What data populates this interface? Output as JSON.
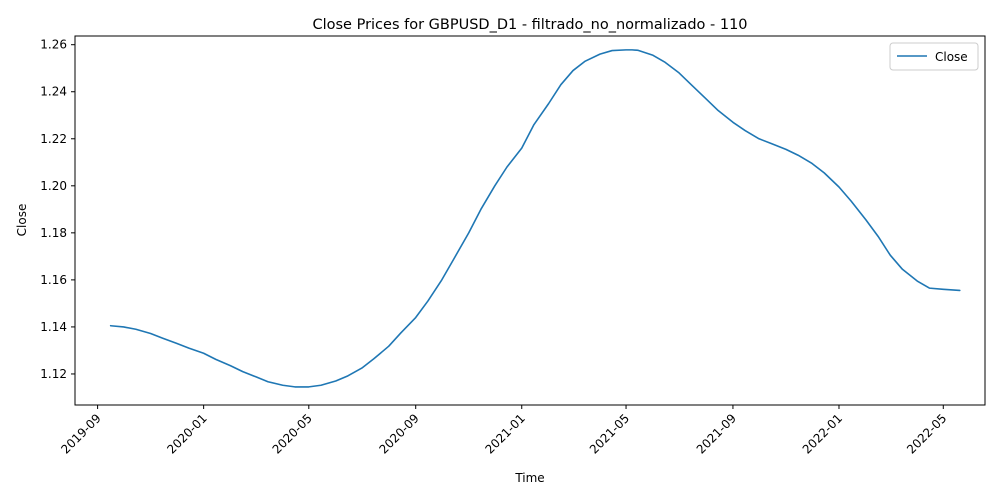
{
  "chart_data": {
    "type": "line",
    "title": "Close Prices for GBPUSD_D1 - filtrado_no_normalizado - 110",
    "xlabel": "Time",
    "ylabel": "Close",
    "x_ticks": [
      "2019-09",
      "2020-01",
      "2020-05",
      "2020-09",
      "2021-01",
      "2021-05",
      "2021-09",
      "2022-01",
      "2022-05"
    ],
    "y_ticks": [
      "1.12",
      "1.14",
      "1.16",
      "1.18",
      "1.20",
      "1.22",
      "1.24",
      "1.26"
    ],
    "xlim": [
      "2019-08-06",
      "2022-06-18"
    ],
    "ylim": [
      1.1068,
      1.2637
    ],
    "grid": false,
    "legend_position": "upper right",
    "series": [
      {
        "name": "Close",
        "color": "#1f77b4",
        "x": [
          "2019-09-16",
          "2019-10-01",
          "2019-10-15",
          "2019-11-01",
          "2019-11-15",
          "2019-12-01",
          "2019-12-15",
          "2020-01-01",
          "2020-01-15",
          "2020-02-01",
          "2020-02-15",
          "2020-03-01",
          "2020-03-15",
          "2020-04-01",
          "2020-04-15",
          "2020-05-01",
          "2020-05-15",
          "2020-06-01",
          "2020-06-15",
          "2020-07-01",
          "2020-07-15",
          "2020-08-01",
          "2020-08-15",
          "2020-09-01",
          "2020-09-15",
          "2020-10-01",
          "2020-10-15",
          "2020-11-01",
          "2020-11-15",
          "2020-12-01",
          "2020-12-15",
          "2021-01-01",
          "2021-01-15",
          "2021-02-01",
          "2021-02-15",
          "2021-03-01",
          "2021-03-15",
          "2021-04-01",
          "2021-04-15",
          "2021-05-01",
          "2021-05-08",
          "2021-05-15",
          "2021-06-01",
          "2021-06-15",
          "2021-07-01",
          "2021-07-15",
          "2021-08-01",
          "2021-08-15",
          "2021-09-01",
          "2021-09-15",
          "2021-10-01",
          "2021-10-15",
          "2021-11-01",
          "2021-11-15",
          "2021-12-01",
          "2021-12-15",
          "2022-01-01",
          "2022-01-15",
          "2022-02-01",
          "2022-02-15",
          "2022-03-01",
          "2022-03-15",
          "2022-04-01",
          "2022-04-15",
          "2022-05-01",
          "2022-05-20"
        ],
        "values": [
          1.1405,
          1.14,
          1.139,
          1.1372,
          1.1352,
          1.133,
          1.131,
          1.1288,
          1.1262,
          1.1235,
          1.121,
          1.1188,
          1.1167,
          1.1152,
          1.1145,
          1.1145,
          1.1152,
          1.117,
          1.1192,
          1.1225,
          1.1265,
          1.1318,
          1.1375,
          1.144,
          1.151,
          1.16,
          1.169,
          1.18,
          1.19,
          1.2,
          1.208,
          1.216,
          1.226,
          1.235,
          1.243,
          1.249,
          1.253,
          1.256,
          1.2575,
          1.2578,
          1.2578,
          1.2576,
          1.2555,
          1.2525,
          1.248,
          1.243,
          1.237,
          1.232,
          1.227,
          1.2235,
          1.22,
          1.218,
          1.2155,
          1.213,
          1.2095,
          1.2055,
          1.1995,
          1.1935,
          1.1855,
          1.1785,
          1.1705,
          1.1645,
          1.1595,
          1.1565,
          1.156,
          1.1555
        ]
      }
    ]
  }
}
